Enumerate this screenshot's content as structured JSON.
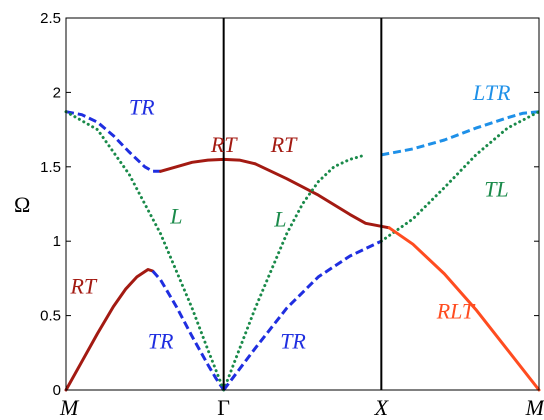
{
  "chart_data": {
    "type": "line",
    "title": "",
    "xlabel": "",
    "ylabel": "Ω",
    "xlim": [
      0,
      3
    ],
    "ylim": [
      0,
      2.5
    ],
    "yticks": [
      0,
      0.5,
      1,
      1.5,
      2,
      2.5
    ],
    "ytick_labels": [
      "0",
      "0.5",
      "1",
      "1.5",
      "2",
      "2.5"
    ],
    "xticks": [
      0,
      1,
      2,
      3
    ],
    "xtick_labels": [
      "M",
      "Γ",
      "X",
      "M"
    ],
    "vlines": [
      1,
      2
    ],
    "grid": false,
    "colors": {
      "dark_red": "#a31a12",
      "blue": "#1f2ee0",
      "green": "#1a8a4a",
      "light_blue": "#1e90e8",
      "orange_red": "#ff4c20",
      "axis": "#000000"
    },
    "series": [
      {
        "label": "RT",
        "color": "#a31a12",
        "style": "solid",
        "x": [
          0,
          0.1,
          0.2,
          0.3,
          0.38,
          0.45,
          0.52,
          0.55
        ],
        "y": [
          0,
          0.19,
          0.38,
          0.56,
          0.68,
          0.76,
          0.81,
          0.8
        ]
      },
      {
        "label": "TR",
        "color": "#1f2ee0",
        "style": "dashed",
        "x": [
          0.55,
          0.6,
          0.7,
          0.8,
          0.9,
          0.95,
          1.0
        ],
        "y": [
          0.8,
          0.74,
          0.56,
          0.36,
          0.17,
          0.08,
          0
        ]
      },
      {
        "label": "TR",
        "color": "#1f2ee0",
        "style": "dashed",
        "x": [
          0,
          0.1,
          0.2,
          0.3,
          0.4,
          0.5,
          0.55,
          0.6
        ],
        "y": [
          1.87,
          1.85,
          1.8,
          1.71,
          1.6,
          1.5,
          1.47,
          1.47
        ]
      },
      {
        "label": "L",
        "color": "#1a8a4a",
        "style": "dotted",
        "x": [
          0,
          0.2,
          0.4,
          0.6,
          0.8,
          0.9,
          1.0
        ],
        "y": [
          1.87,
          1.75,
          1.45,
          1.05,
          0.55,
          0.27,
          0
        ]
      },
      {
        "label": "RT",
        "color": "#a31a12",
        "style": "solid",
        "x": [
          0.6,
          0.7,
          0.8,
          0.9,
          1.0,
          1.1,
          1.2
        ],
        "y": [
          1.47,
          1.5,
          1.53,
          1.545,
          1.55,
          1.545,
          1.52
        ]
      },
      {
        "label": "RT",
        "color": "#a31a12",
        "style": "solid",
        "x": [
          1.2,
          1.4,
          1.6,
          1.8,
          1.9,
          2.0,
          2.05
        ],
        "y": [
          1.52,
          1.42,
          1.31,
          1.18,
          1.12,
          1.1,
          1.09
        ]
      },
      {
        "label": "L",
        "color": "#1a8a4a",
        "style": "dotted",
        "x": [
          1.0,
          1.2,
          1.4,
          1.5,
          1.6,
          1.7,
          1.8,
          1.9
        ],
        "y": [
          0,
          0.55,
          1.05,
          1.25,
          1.4,
          1.5,
          1.55,
          1.58
        ]
      },
      {
        "label": "TR",
        "color": "#1f2ee0",
        "style": "dashed",
        "x": [
          1.0,
          1.2,
          1.4,
          1.6,
          1.8,
          1.9,
          2.0
        ],
        "y": [
          0,
          0.28,
          0.55,
          0.76,
          0.9,
          0.95,
          1.0
        ]
      },
      {
        "label": "LTR",
        "color": "#1e90e8",
        "style": "dashed",
        "x": [
          2.0,
          2.2,
          2.4,
          2.6,
          2.8,
          2.9,
          3.0
        ],
        "y": [
          1.58,
          1.62,
          1.68,
          1.76,
          1.83,
          1.86,
          1.87
        ]
      },
      {
        "label": "TL",
        "color": "#1a8a4a",
        "style": "dotted",
        "x": [
          2.0,
          2.2,
          2.4,
          2.6,
          2.8,
          3.0
        ],
        "y": [
          1.0,
          1.15,
          1.36,
          1.58,
          1.76,
          1.87
        ]
      },
      {
        "label": "RLT",
        "color": "#ff4c20",
        "style": "solid",
        "x": [
          2.05,
          2.2,
          2.4,
          2.6,
          2.8,
          3.0
        ],
        "y": [
          1.09,
          0.98,
          0.78,
          0.54,
          0.27,
          0
        ]
      }
    ],
    "annotations": [
      {
        "text": "TR",
        "x": 0.48,
        "y": 1.85,
        "color": "#1f2ee0"
      },
      {
        "text": "RT",
        "x": 1.0,
        "y": 1.6,
        "color": "#a31a12"
      },
      {
        "text": "RT",
        "x": 1.38,
        "y": 1.6,
        "color": "#a31a12"
      },
      {
        "text": "LTR",
        "x": 2.7,
        "y": 1.95,
        "color": "#1e90e8"
      },
      {
        "text": "TL",
        "x": 2.73,
        "y": 1.3,
        "color": "#1a8a4a"
      },
      {
        "text": "L",
        "x": 0.7,
        "y": 1.12,
        "color": "#1a8a4a"
      },
      {
        "text": "L",
        "x": 1.36,
        "y": 1.1,
        "color": "#1a8a4a"
      },
      {
        "text": "RT",
        "x": 0.11,
        "y": 0.65,
        "color": "#a31a12"
      },
      {
        "text": "RLT",
        "x": 2.47,
        "y": 0.48,
        "color": "#ff4c20"
      },
      {
        "text": "TR",
        "x": 0.6,
        "y": 0.28,
        "color": "#1f2ee0"
      },
      {
        "text": "TR",
        "x": 1.44,
        "y": 0.28,
        "color": "#1f2ee0"
      }
    ]
  }
}
